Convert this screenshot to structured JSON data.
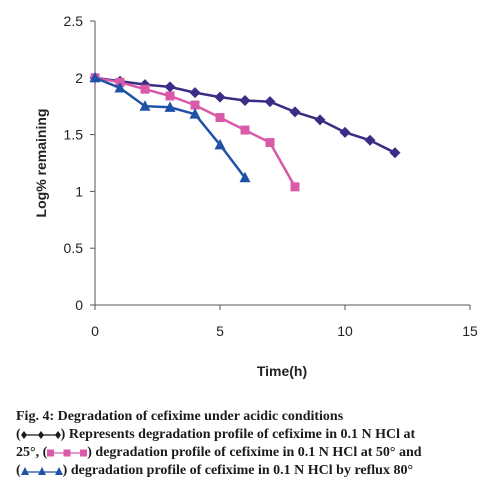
{
  "chart_data": {
    "type": "line",
    "xlabel": "Time(h)",
    "ylabel": "Log% remaining",
    "xlim": [
      0,
      15
    ],
    "ylim": [
      0,
      2.5
    ],
    "xticks": [
      "0",
      "5",
      "10",
      "15"
    ],
    "yticks": [
      "0",
      "0.5",
      "1",
      "1.5",
      "2",
      "2.5"
    ],
    "grid": false,
    "series": [
      {
        "marker": "diamond",
        "color": "#3a2d86",
        "x": [
          0,
          1,
          2,
          3,
          4,
          5,
          6,
          7,
          8,
          9,
          10,
          11,
          12
        ],
        "y": [
          2.0,
          1.97,
          1.94,
          1.92,
          1.87,
          1.83,
          1.8,
          1.79,
          1.7,
          1.63,
          1.52,
          1.45,
          1.34
        ]
      },
      {
        "marker": "square",
        "color": "#d85aa8",
        "x": [
          0,
          1,
          2,
          3,
          4,
          5,
          6,
          7,
          8
        ],
        "y": [
          2.0,
          1.96,
          1.9,
          1.84,
          1.76,
          1.65,
          1.54,
          1.43,
          1.04
        ]
      },
      {
        "marker": "triangle",
        "color": "#1f52a6",
        "x": [
          0,
          1,
          2,
          3,
          4,
          5,
          6
        ],
        "y": [
          2.0,
          1.91,
          1.75,
          1.74,
          1.68,
          1.41,
          1.12
        ]
      }
    ]
  },
  "caption": {
    "title": "Fig. 4: Degradation of cefixime under acidic conditions",
    "line2_suffix": ") Represents  degradation profile of cefixime in 0.1 N HCl at",
    "line3_prefix": "25°, (",
    "line3_suffix": ") degradation profile of cefixime in 0.1 N HCl at 50° and",
    "line4_prefix": "(",
    "line4_suffix": ") degradation profile of cefixime in 0.1 N HCl by reflux 80°"
  }
}
